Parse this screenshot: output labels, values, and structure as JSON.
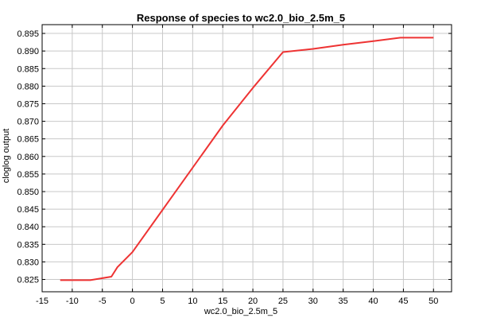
{
  "chart_data": {
    "type": "line",
    "title": "Response of species to wc2.0_bio_2.5m_5",
    "xlabel": "wc2.0_bio_2.5m_5",
    "ylabel": "cloglog output",
    "xlim": [
      -15,
      53
    ],
    "ylim": [
      0.8215,
      0.8975
    ],
    "x_ticks": [
      -15,
      -10,
      -5,
      0,
      5,
      10,
      15,
      20,
      25,
      30,
      35,
      40,
      45,
      50
    ],
    "x_tick_labels": [
      "-15",
      "-10",
      "-5",
      "0",
      "5",
      "10",
      "15",
      "20",
      "25",
      "30",
      "35",
      "40",
      "45",
      "50"
    ],
    "y_ticks": [
      0.825,
      0.83,
      0.835,
      0.84,
      0.845,
      0.85,
      0.855,
      0.86,
      0.865,
      0.87,
      0.875,
      0.88,
      0.885,
      0.89,
      0.895
    ],
    "y_tick_labels": [
      "0.825",
      "0.830",
      "0.835",
      "0.840",
      "0.845",
      "0.850",
      "0.855",
      "0.860",
      "0.865",
      "0.870",
      "0.875",
      "0.880",
      "0.885",
      "0.890",
      "0.895"
    ],
    "grid": true,
    "series": [
      {
        "color": "#ee3333",
        "x": [
          -12,
          -7,
          -3.5,
          -2.5,
          0,
          5,
          10,
          15,
          20,
          25,
          30,
          35,
          40,
          44.5,
          50
        ],
        "y": [
          0.8248,
          0.8248,
          0.8258,
          0.8285,
          0.8328,
          0.8448,
          0.8568,
          0.8688,
          0.8795,
          0.8897,
          0.8906,
          0.8918,
          0.8928,
          0.8938,
          0.8938
        ]
      }
    ]
  }
}
